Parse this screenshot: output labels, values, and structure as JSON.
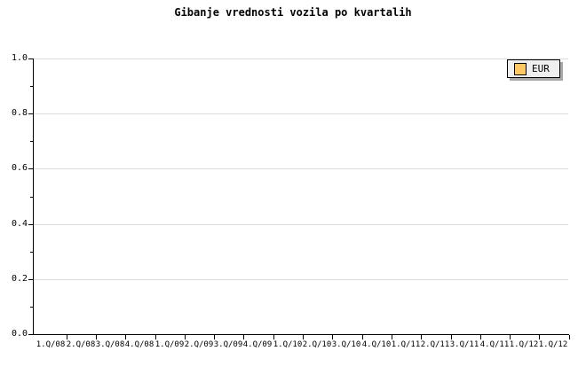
{
  "title": "Gibanje vrednosti vozila po kvartalih",
  "legend": {
    "items": [
      {
        "label": "EUR",
        "swatch_color": "#ffc862"
      }
    ]
  },
  "colors": {
    "background": "#ffffff",
    "axis": "#000000",
    "gridline": "#dcdcdc",
    "legend_background": "#efefef",
    "legend_border": "#000000",
    "legend_shadow": "#a8a8a8",
    "series_eur": "#ffc862"
  },
  "chart_data": {
    "type": "line",
    "title": "Gibanje vrednosti vozila po kvartalih",
    "categories": [
      "1.Q/08",
      "2.Q/08",
      "3.Q/08",
      "4.Q/08",
      "1.Q/09",
      "2.Q/09",
      "3.Q/09",
      "4.Q/09",
      "1.Q/10",
      "2.Q/10",
      "3.Q/10",
      "4.Q/10",
      "1.Q/11",
      "2.Q/11",
      "3.Q/11",
      "4.Q/11",
      "1.Q/12",
      "1.Q/12"
    ],
    "series": [
      {
        "name": "EUR",
        "color": "#ffc862",
        "values": []
      }
    ],
    "xlabel": "",
    "ylabel": "",
    "ylim": [
      0.0,
      1.0
    ],
    "yticks": [
      0.0,
      0.2,
      0.4,
      0.6,
      0.8,
      1.0
    ],
    "ytick_labels": [
      "0.0",
      "0.2",
      "0.4",
      "0.6",
      "0.8",
      "1.0"
    ],
    "minor_ytick_step": 0.1,
    "grid": "horizontal-major-only",
    "legend_position": "top-right",
    "plot_is_empty": true
  }
}
